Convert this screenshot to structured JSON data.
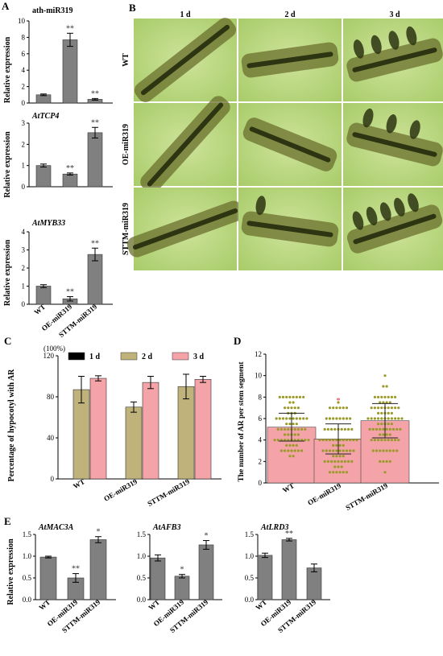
{
  "figure": {
    "colors": {
      "bar_gray": "#808080",
      "bar_1d": "#000000",
      "bar_2d": "#bfb27a",
      "bar_3d": "#f4a3a8",
      "scatter_fill": "#f4a3a8",
      "scatter_point": "#9a9a2a",
      "scatter_point_highlight": "#e23030",
      "photo_bg": "#b6d67a",
      "stem_dark": "#2d3412",
      "stem_mid": "#6a6f2c"
    }
  },
  "panel_labels": {
    "A": "A",
    "B": "B",
    "C": "C",
    "D": "D",
    "E": "E"
  },
  "microscopy": {
    "columns": [
      "1 d",
      "2 d",
      "3 d"
    ],
    "rows": [
      "WT",
      "OE-miR319",
      "STTM-miR319"
    ]
  },
  "chart_data": [
    {
      "id": "A1",
      "type": "bar",
      "title": "ath-miR319",
      "ylabel": "Relative expression",
      "categories": [
        "WT",
        "OE-miR319",
        "STTM-miR319"
      ],
      "values": [
        1.0,
        7.7,
        0.45
      ],
      "errors": [
        0.1,
        0.8,
        0.1
      ],
      "significance": [
        "",
        "**",
        "**"
      ],
      "ylim": [
        0,
        10
      ],
      "yticks": [
        0,
        2,
        4,
        6,
        8,
        10
      ],
      "xlabels_shown": false
    },
    {
      "id": "A2",
      "type": "bar",
      "title": "AtTCP4",
      "ylabel": "Relative expression",
      "categories": [
        "WT",
        "OE-miR319",
        "STTM-miR319"
      ],
      "values": [
        1.0,
        0.6,
        2.55
      ],
      "errors": [
        0.07,
        0.05,
        0.25
      ],
      "significance": [
        "",
        "**",
        "**"
      ],
      "ylim": [
        0,
        3
      ],
      "yticks": [
        0,
        1,
        2,
        3
      ],
      "xlabels_shown": false
    },
    {
      "id": "A3",
      "type": "bar",
      "title": "AtMYB33",
      "ylabel": "Relative expression",
      "categories": [
        "WT",
        "OE-miR319",
        "STTM-miR319"
      ],
      "values": [
        1.0,
        0.3,
        2.75
      ],
      "errors": [
        0.08,
        0.12,
        0.35
      ],
      "significance": [
        "",
        "**",
        "**"
      ],
      "ylim": [
        0,
        4
      ],
      "yticks": [
        0,
        1,
        2,
        3,
        4
      ],
      "xlabels_shown": true
    },
    {
      "id": "C",
      "type": "bar",
      "ylabel": "Percentage of hypocotyl with AR",
      "yunit": "(100%)",
      "categories": [
        "WT",
        "OE-miR319",
        "STTM-miR319"
      ],
      "series": [
        {
          "name": "1 d",
          "values": [
            0,
            0,
            0
          ],
          "errors": [
            0,
            0,
            0
          ]
        },
        {
          "name": "2 d",
          "values": [
            87,
            70,
            90
          ],
          "errors": [
            13,
            5,
            12
          ]
        },
        {
          "name": "3 d",
          "values": [
            98,
            94,
            97
          ],
          "errors": [
            2.5,
            6,
            3
          ]
        }
      ],
      "ylim": [
        0,
        120
      ],
      "yticks": [
        0,
        40,
        80,
        120
      ],
      "legend": "top"
    },
    {
      "id": "D",
      "type": "bar",
      "ylabel": "The number of AR per stem segment",
      "categories": [
        "WT",
        "OE-miR319",
        "STTM-miR319"
      ],
      "values": [
        5.2,
        4.1,
        5.8
      ],
      "errors": [
        1.3,
        1.4,
        1.6
      ],
      "significance": [
        "",
        "*",
        ""
      ],
      "points": [
        [
          {
            "v": 8,
            "n": 8
          },
          {
            "v": 7.5,
            "n": 2
          },
          {
            "v": 7,
            "n": 5
          },
          {
            "v": 6.5,
            "n": 3
          },
          {
            "v": 6,
            "n": 10
          },
          {
            "v": 5.5,
            "n": 4
          },
          {
            "v": 5,
            "n": 9
          },
          {
            "v": 4.5,
            "n": 5
          },
          {
            "v": 4,
            "n": 11
          },
          {
            "v": 3.5,
            "n": 4
          },
          {
            "v": 3,
            "n": 7
          },
          {
            "v": 2.5,
            "n": 2
          }
        ],
        [
          {
            "v": 7.5,
            "n": 1
          },
          {
            "v": 7,
            "n": 6
          },
          {
            "v": 6,
            "n": 8
          },
          {
            "v": 5,
            "n": 9
          },
          {
            "v": 4,
            "n": 12
          },
          {
            "v": 3.5,
            "n": 4
          },
          {
            "v": 3,
            "n": 10
          },
          {
            "v": 2.5,
            "n": 4
          },
          {
            "v": 2,
            "n": 9
          },
          {
            "v": 1.5,
            "n": 3
          },
          {
            "v": 1,
            "n": 6
          }
        ],
        [
          {
            "v": 10,
            "n": 1
          },
          {
            "v": 9,
            "n": 2
          },
          {
            "v": 8,
            "n": 7
          },
          {
            "v": 7.5,
            "n": 4
          },
          {
            "v": 7,
            "n": 9
          },
          {
            "v": 6.5,
            "n": 5
          },
          {
            "v": 6,
            "n": 11
          },
          {
            "v": 5.5,
            "n": 5
          },
          {
            "v": 5,
            "n": 10
          },
          {
            "v": 4.5,
            "n": 4
          },
          {
            "v": 4,
            "n": 9
          },
          {
            "v": 3,
            "n": 8
          },
          {
            "v": 2,
            "n": 4
          },
          {
            "v": 1,
            "n": 1
          }
        ]
      ],
      "ylim": [
        0,
        12
      ],
      "yticks": [
        0,
        2,
        4,
        6,
        8,
        10,
        12
      ]
    },
    {
      "id": "E1",
      "type": "bar",
      "title": "AtMAC3A",
      "ylabel": "Relative expression",
      "categories": [
        "WT",
        "OE-miR319",
        "STTM-miR319"
      ],
      "values": [
        0.98,
        0.5,
        1.38
      ],
      "errors": [
        0.02,
        0.1,
        0.07
      ],
      "significance": [
        "",
        "**",
        "*"
      ],
      "ylim": [
        0,
        1.5
      ],
      "yticks": [
        0.0,
        0.5,
        1.0,
        1.5
      ],
      "ticklabels": [
        "0.0",
        "0.5",
        "1.0",
        "1.5"
      ]
    },
    {
      "id": "E2",
      "type": "bar",
      "title": "AtAFB3",
      "categories": [
        "WT",
        "OE-miR319",
        "STTM-miR319"
      ],
      "values": [
        0.96,
        0.54,
        1.26
      ],
      "errors": [
        0.07,
        0.04,
        0.1
      ],
      "significance": [
        "",
        "*",
        "*"
      ],
      "ylim": [
        0,
        1.5
      ],
      "yticks": [
        0.0,
        0.5,
        1.0,
        1.5
      ],
      "ticklabels": [
        "0.0",
        "0.5",
        "1.0",
        "1.5"
      ]
    },
    {
      "id": "E3",
      "type": "bar",
      "title": "AtLRD3",
      "categories": [
        "WT",
        "OE-miR319",
        "STTM-miR319"
      ],
      "values": [
        1.02,
        1.38,
        0.73
      ],
      "errors": [
        0.05,
        0.03,
        0.09
      ],
      "significance": [
        "",
        "**",
        ""
      ],
      "ylim": [
        0,
        1.5
      ],
      "yticks": [
        0.0,
        0.5,
        1.0,
        1.5
      ],
      "ticklabels": [
        "0.0",
        "0.5",
        "1.0",
        "1.5"
      ]
    }
  ]
}
